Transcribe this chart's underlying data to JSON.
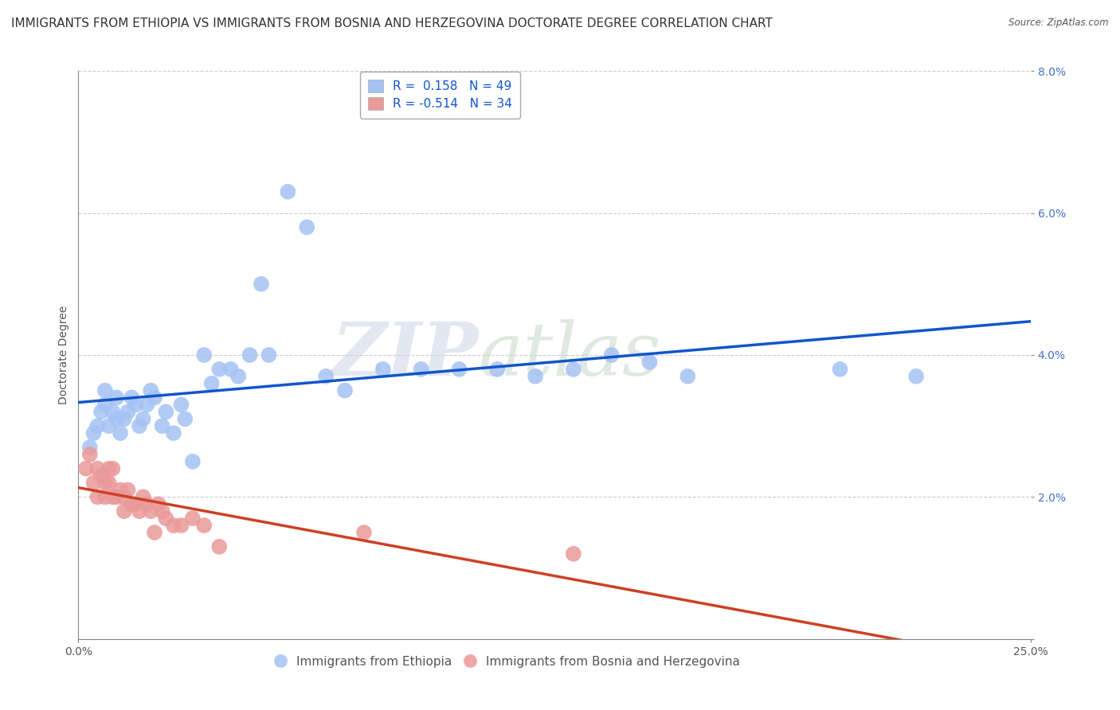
{
  "title": "IMMIGRANTS FROM ETHIOPIA VS IMMIGRANTS FROM BOSNIA AND HERZEGOVINA DOCTORATE DEGREE CORRELATION CHART",
  "source": "Source: ZipAtlas.com",
  "ylabel": "Doctorate Degree",
  "xlim": [
    0.0,
    0.25
  ],
  "ylim": [
    0.0,
    0.08
  ],
  "legend1_label": "R =  0.158   N = 49",
  "legend2_label": "R = -0.514   N = 34",
  "blue_color": "#a4c2f4",
  "pink_color": "#ea9999",
  "line_blue": "#1155cc",
  "line_pink": "#cc4125",
  "watermark_zip": "ZIP",
  "watermark_atlas": "atlas",
  "background_color": "#ffffff",
  "grid_color": "#cccccc",
  "title_fontsize": 11,
  "axis_fontsize": 10,
  "tick_color": "#4472c4",
  "ethiopia_x": [
    0.003,
    0.004,
    0.005,
    0.006,
    0.007,
    0.007,
    0.008,
    0.009,
    0.01,
    0.01,
    0.011,
    0.012,
    0.013,
    0.014,
    0.015,
    0.016,
    0.017,
    0.018,
    0.019,
    0.02,
    0.022,
    0.023,
    0.025,
    0.027,
    0.028,
    0.03,
    0.033,
    0.035,
    0.037,
    0.04,
    0.042,
    0.045,
    0.048,
    0.05,
    0.055,
    0.06,
    0.065,
    0.07,
    0.08,
    0.09,
    0.1,
    0.11,
    0.12,
    0.13,
    0.14,
    0.15,
    0.16,
    0.2,
    0.22
  ],
  "ethiopia_y": [
    0.027,
    0.029,
    0.03,
    0.032,
    0.033,
    0.035,
    0.03,
    0.032,
    0.031,
    0.034,
    0.029,
    0.031,
    0.032,
    0.034,
    0.033,
    0.03,
    0.031,
    0.033,
    0.035,
    0.034,
    0.03,
    0.032,
    0.029,
    0.033,
    0.031,
    0.025,
    0.04,
    0.036,
    0.038,
    0.038,
    0.037,
    0.04,
    0.05,
    0.04,
    0.063,
    0.058,
    0.037,
    0.035,
    0.038,
    0.038,
    0.038,
    0.038,
    0.037,
    0.038,
    0.04,
    0.039,
    0.037,
    0.038,
    0.037
  ],
  "bosnia_x": [
    0.002,
    0.003,
    0.004,
    0.005,
    0.005,
    0.006,
    0.007,
    0.007,
    0.008,
    0.008,
    0.009,
    0.009,
    0.01,
    0.011,
    0.012,
    0.012,
    0.013,
    0.014,
    0.015,
    0.016,
    0.017,
    0.018,
    0.019,
    0.02,
    0.021,
    0.022,
    0.023,
    0.025,
    0.027,
    0.03,
    0.033,
    0.037,
    0.075,
    0.13
  ],
  "bosnia_y": [
    0.024,
    0.026,
    0.022,
    0.024,
    0.02,
    0.023,
    0.022,
    0.02,
    0.024,
    0.022,
    0.02,
    0.024,
    0.02,
    0.021,
    0.018,
    0.02,
    0.021,
    0.019,
    0.019,
    0.018,
    0.02,
    0.019,
    0.018,
    0.015,
    0.019,
    0.018,
    0.017,
    0.016,
    0.016,
    0.017,
    0.016,
    0.013,
    0.015,
    0.012
  ]
}
